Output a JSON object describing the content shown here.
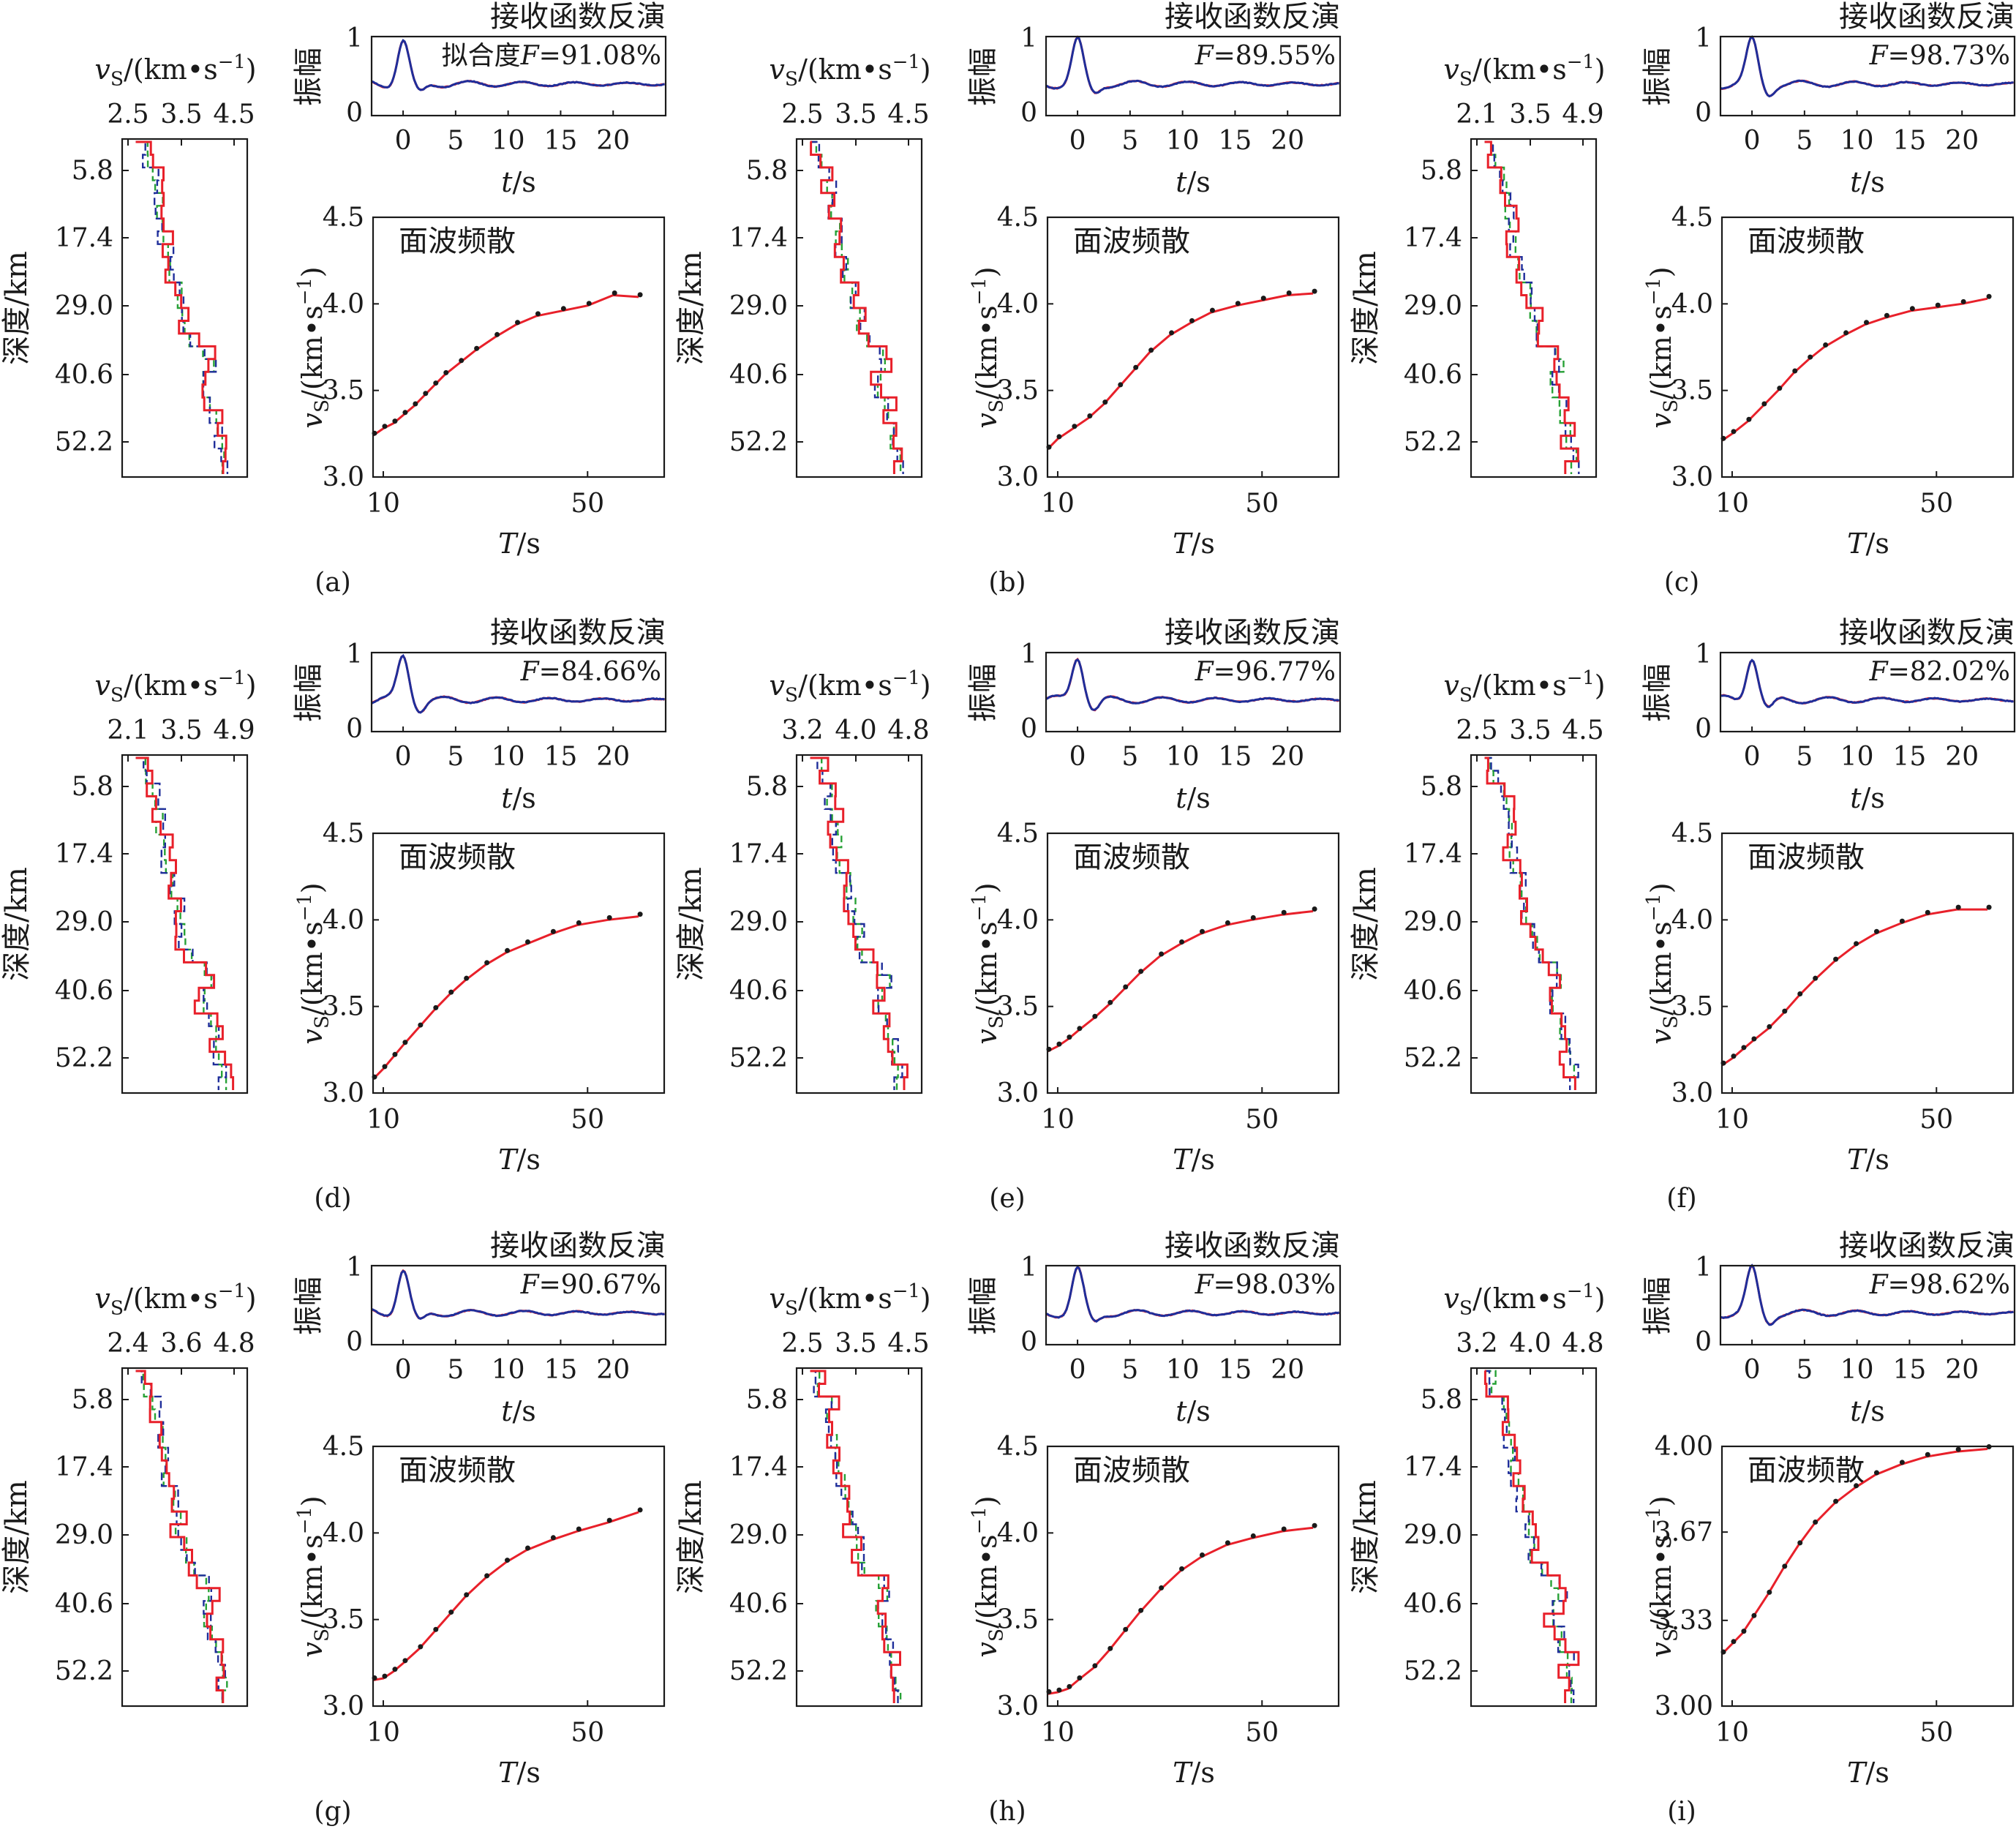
{
  "labels": {
    "rf_title": "接收函数反演",
    "rf_ylabel": "振幅",
    "rf_xlabel": "t/s",
    "fit_prefix": "拟合度",
    "f_symbol": "F",
    "sw_title": "面波频散",
    "sw_ylabel": "vS/(km·s⁻¹)",
    "sw_xlabel": "T/s",
    "depth_label": "深度/km",
    "velocity_label": "vS/(km·s⁻¹)"
  },
  "colors": {
    "red": "#e8202a",
    "blue": "#1f2e9a",
    "green": "#27a136",
    "black": "#1a1a1a"
  },
  "chart_data": [
    {
      "panel": "(a)",
      "type": "line",
      "velocity_ticks": [
        "2.5",
        "3.5",
        "4.5"
      ],
      "depth_ticks": [
        "5.8",
        "17.4",
        "29.0",
        "40.6",
        "52.2"
      ],
      "rf_fit": "91.08%",
      "rf_yticks": [
        "0",
        "1"
      ],
      "rf_xticks": [
        "0",
        "5",
        "10",
        "15",
        "20"
      ],
      "sw_yticks": [
        "3.0",
        "3.5",
        "4.0",
        "4.5"
      ],
      "sw_ylim": [
        3.0,
        4.5
      ],
      "sw_xticks": [
        "10",
        "50"
      ],
      "dispersion_obs": [
        [
          8,
          3.24
        ],
        [
          10,
          3.28
        ],
        [
          12,
          3.31
        ],
        [
          14,
          3.36
        ],
        [
          16,
          3.41
        ],
        [
          18,
          3.47
        ],
        [
          20,
          3.53
        ],
        [
          22,
          3.59
        ],
        [
          25,
          3.66
        ],
        [
          28,
          3.73
        ],
        [
          32,
          3.81
        ],
        [
          36,
          3.88
        ],
        [
          40,
          3.93
        ],
        [
          45,
          3.96
        ],
        [
          50,
          3.99
        ],
        [
          55,
          4.05
        ],
        [
          60,
          4.04
        ]
      ]
    },
    {
      "panel": "(b)",
      "type": "line",
      "velocity_ticks": [
        "2.5",
        "3.5",
        "4.5"
      ],
      "depth_ticks": [
        "5.8",
        "17.4",
        "29.0",
        "40.6",
        "52.2"
      ],
      "rf_fit": "89.55%",
      "rf_yticks": [
        "0",
        "1"
      ],
      "rf_xticks": [
        "0",
        "5",
        "10",
        "15",
        "20"
      ],
      "sw_yticks": [
        "3.0",
        "3.5",
        "4.0",
        "4.5"
      ],
      "sw_ylim": [
        3.0,
        4.5
      ],
      "sw_xticks": [
        "10",
        "50"
      ],
      "dispersion_obs": [
        [
          8,
          3.16
        ],
        [
          10,
          3.22
        ],
        [
          13,
          3.28
        ],
        [
          16,
          3.34
        ],
        [
          19,
          3.42
        ],
        [
          22,
          3.52
        ],
        [
          25,
          3.62
        ],
        [
          28,
          3.72
        ],
        [
          32,
          3.82
        ],
        [
          36,
          3.89
        ],
        [
          40,
          3.95
        ],
        [
          45,
          3.99
        ],
        [
          50,
          4.02
        ],
        [
          55,
          4.05
        ],
        [
          60,
          4.06
        ]
      ]
    },
    {
      "panel": "(c)",
      "type": "line",
      "velocity_ticks": [
        "2.1",
        "3.5",
        "4.9"
      ],
      "depth_ticks": [
        "5.8",
        "17.4",
        "29.0",
        "40.6",
        "52.2"
      ],
      "rf_fit": "98.73%",
      "rf_yticks": [
        "0",
        "1"
      ],
      "rf_xticks": [
        "0",
        "5",
        "10",
        "15",
        "20"
      ],
      "sw_yticks": [
        "3.0",
        "3.5",
        "4.0",
        "4.5"
      ],
      "sw_ylim": [
        3.0,
        4.5
      ],
      "sw_xticks": [
        "10",
        "50"
      ],
      "dispersion_obs": [
        [
          8,
          3.21
        ],
        [
          10,
          3.25
        ],
        [
          13,
          3.32
        ],
        [
          16,
          3.41
        ],
        [
          19,
          3.5
        ],
        [
          22,
          3.6
        ],
        [
          25,
          3.68
        ],
        [
          28,
          3.75
        ],
        [
          32,
          3.82
        ],
        [
          36,
          3.88
        ],
        [
          40,
          3.92
        ],
        [
          45,
          3.96
        ],
        [
          50,
          3.98
        ],
        [
          55,
          4.0
        ],
        [
          60,
          4.03
        ]
      ]
    },
    {
      "panel": "(d)",
      "type": "line",
      "velocity_ticks": [
        "2.1",
        "3.5",
        "4.9"
      ],
      "depth_ticks": [
        "5.8",
        "17.4",
        "29.0",
        "40.6",
        "52.2"
      ],
      "rf_fit": "84.66%",
      "rf_yticks": [
        "0",
        "1"
      ],
      "rf_xticks": [
        "0",
        "5",
        "10",
        "15",
        "20"
      ],
      "sw_yticks": [
        "3.0",
        "3.5",
        "4.0",
        "4.5"
      ],
      "sw_ylim": [
        3.0,
        4.5
      ],
      "sw_xticks": [
        "10",
        "50"
      ],
      "dispersion_obs": [
        [
          8,
          3.08
        ],
        [
          10,
          3.14
        ],
        [
          12,
          3.21
        ],
        [
          14,
          3.28
        ],
        [
          17,
          3.38
        ],
        [
          20,
          3.48
        ],
        [
          23,
          3.57
        ],
        [
          26,
          3.65
        ],
        [
          30,
          3.74
        ],
        [
          34,
          3.81
        ],
        [
          38,
          3.86
        ],
        [
          43,
          3.92
        ],
        [
          48,
          3.97
        ],
        [
          54,
          4.0
        ],
        [
          60,
          4.02
        ]
      ]
    },
    {
      "panel": "(e)",
      "type": "line",
      "velocity_ticks": [
        "3.2",
        "4.0",
        "4.8"
      ],
      "depth_ticks": [
        "5.8",
        "17.4",
        "29.0",
        "40.6",
        "52.2"
      ],
      "rf_fit": "96.77%",
      "rf_yticks": [
        "0",
        "1"
      ],
      "rf_xticks": [
        "0",
        "5",
        "10",
        "15",
        "20"
      ],
      "sw_yticks": [
        "3.0",
        "3.5",
        "4.0",
        "4.5"
      ],
      "sw_ylim": [
        3.0,
        4.5
      ],
      "sw_xticks": [
        "10",
        "50"
      ],
      "dispersion_obs": [
        [
          8,
          3.24
        ],
        [
          10,
          3.27
        ],
        [
          12,
          3.31
        ],
        [
          14,
          3.36
        ],
        [
          17,
          3.43
        ],
        [
          20,
          3.51
        ],
        [
          23,
          3.6
        ],
        [
          26,
          3.69
        ],
        [
          30,
          3.79
        ],
        [
          34,
          3.86
        ],
        [
          38,
          3.92
        ],
        [
          43,
          3.97
        ],
        [
          48,
          4.0
        ],
        [
          54,
          4.03
        ],
        [
          60,
          4.05
        ]
      ]
    },
    {
      "panel": "(f)",
      "type": "line",
      "velocity_ticks": [
        "2.5",
        "3.5",
        "4.5"
      ],
      "depth_ticks": [
        "5.8",
        "17.4",
        "29.0",
        "40.6",
        "52.2"
      ],
      "rf_fit": "82.02%",
      "rf_yticks": [
        "0",
        "1"
      ],
      "rf_xticks": [
        "0",
        "5",
        "10",
        "15",
        "20"
      ],
      "sw_yticks": [
        "3.0",
        "3.5",
        "4.0",
        "4.5"
      ],
      "sw_ylim": [
        3.0,
        4.5
      ],
      "sw_xticks": [
        "10",
        "50"
      ],
      "dispersion_obs": [
        [
          8,
          3.16
        ],
        [
          10,
          3.2
        ],
        [
          12,
          3.25
        ],
        [
          14,
          3.3
        ],
        [
          17,
          3.37
        ],
        [
          20,
          3.46
        ],
        [
          23,
          3.56
        ],
        [
          26,
          3.65
        ],
        [
          30,
          3.76
        ],
        [
          34,
          3.85
        ],
        [
          38,
          3.92
        ],
        [
          43,
          3.98
        ],
        [
          48,
          4.03
        ],
        [
          54,
          4.06
        ],
        [
          60,
          4.06
        ]
      ]
    },
    {
      "panel": "(g)",
      "type": "line",
      "velocity_ticks": [
        "2.4",
        "3.6",
        "4.8"
      ],
      "depth_ticks": [
        "5.8",
        "17.4",
        "29.0",
        "40.6",
        "52.2"
      ],
      "rf_fit": "90.67%",
      "rf_yticks": [
        "0",
        "1"
      ],
      "rf_xticks": [
        "0",
        "5",
        "10",
        "15",
        "20"
      ],
      "sw_yticks": [
        "3.0",
        "3.5",
        "4.0",
        "4.5"
      ],
      "sw_ylim": [
        3.0,
        4.5
      ],
      "sw_xticks": [
        "10",
        "50"
      ],
      "dispersion_obs": [
        [
          8,
          3.15
        ],
        [
          10,
          3.16
        ],
        [
          12,
          3.2
        ],
        [
          14,
          3.25
        ],
        [
          17,
          3.33
        ],
        [
          20,
          3.43
        ],
        [
          23,
          3.53
        ],
        [
          26,
          3.63
        ],
        [
          30,
          3.74
        ],
        [
          34,
          3.83
        ],
        [
          38,
          3.9
        ],
        [
          43,
          3.96
        ],
        [
          48,
          4.01
        ],
        [
          54,
          4.06
        ],
        [
          60,
          4.12
        ]
      ]
    },
    {
      "panel": "(h)",
      "type": "line",
      "velocity_ticks": [
        "2.5",
        "3.5",
        "4.5"
      ],
      "depth_ticks": [
        "5.8",
        "17.4",
        "29.0",
        "40.6",
        "52.2"
      ],
      "rf_fit": "98.03%",
      "rf_yticks": [
        "0",
        "1"
      ],
      "rf_xticks": [
        "0",
        "5",
        "10",
        "15",
        "20"
      ],
      "sw_yticks": [
        "3.0",
        "3.5",
        "4.0",
        "4.5"
      ],
      "sw_ylim": [
        3.0,
        4.5
      ],
      "sw_xticks": [
        "10",
        "50"
      ],
      "dispersion_obs": [
        [
          8,
          3.07
        ],
        [
          10,
          3.08
        ],
        [
          12,
          3.1
        ],
        [
          14,
          3.15
        ],
        [
          17,
          3.22
        ],
        [
          20,
          3.32
        ],
        [
          23,
          3.43
        ],
        [
          26,
          3.54
        ],
        [
          30,
          3.67
        ],
        [
          34,
          3.78
        ],
        [
          38,
          3.86
        ],
        [
          43,
          3.93
        ],
        [
          48,
          3.97
        ],
        [
          54,
          4.01
        ],
        [
          60,
          4.03
        ]
      ]
    },
    {
      "panel": "(i)",
      "type": "line",
      "velocity_ticks": [
        "3.2",
        "4.0",
        "4.8"
      ],
      "depth_ticks": [
        "5.8",
        "17.4",
        "29.0",
        "40.6",
        "52.2"
      ],
      "rf_fit": "98.62%",
      "rf_yticks": [
        "0",
        "1"
      ],
      "rf_xticks": [
        "0",
        "5",
        "10",
        "15",
        "20"
      ],
      "sw_yticks": [
        "3.00",
        "3.33",
        "3.67",
        "4.00"
      ],
      "sw_ylim": [
        3.0,
        4.0
      ],
      "sw_xticks": [
        "10",
        "50"
      ],
      "dispersion_obs": [
        [
          8,
          3.2
        ],
        [
          10,
          3.24
        ],
        [
          12,
          3.28
        ],
        [
          14,
          3.34
        ],
        [
          17,
          3.43
        ],
        [
          20,
          3.53
        ],
        [
          23,
          3.62
        ],
        [
          26,
          3.7
        ],
        [
          30,
          3.78
        ],
        [
          34,
          3.84
        ],
        [
          38,
          3.89
        ],
        [
          43,
          3.93
        ],
        [
          48,
          3.96
        ],
        [
          54,
          3.98
        ],
        [
          60,
          3.99
        ]
      ]
    }
  ]
}
